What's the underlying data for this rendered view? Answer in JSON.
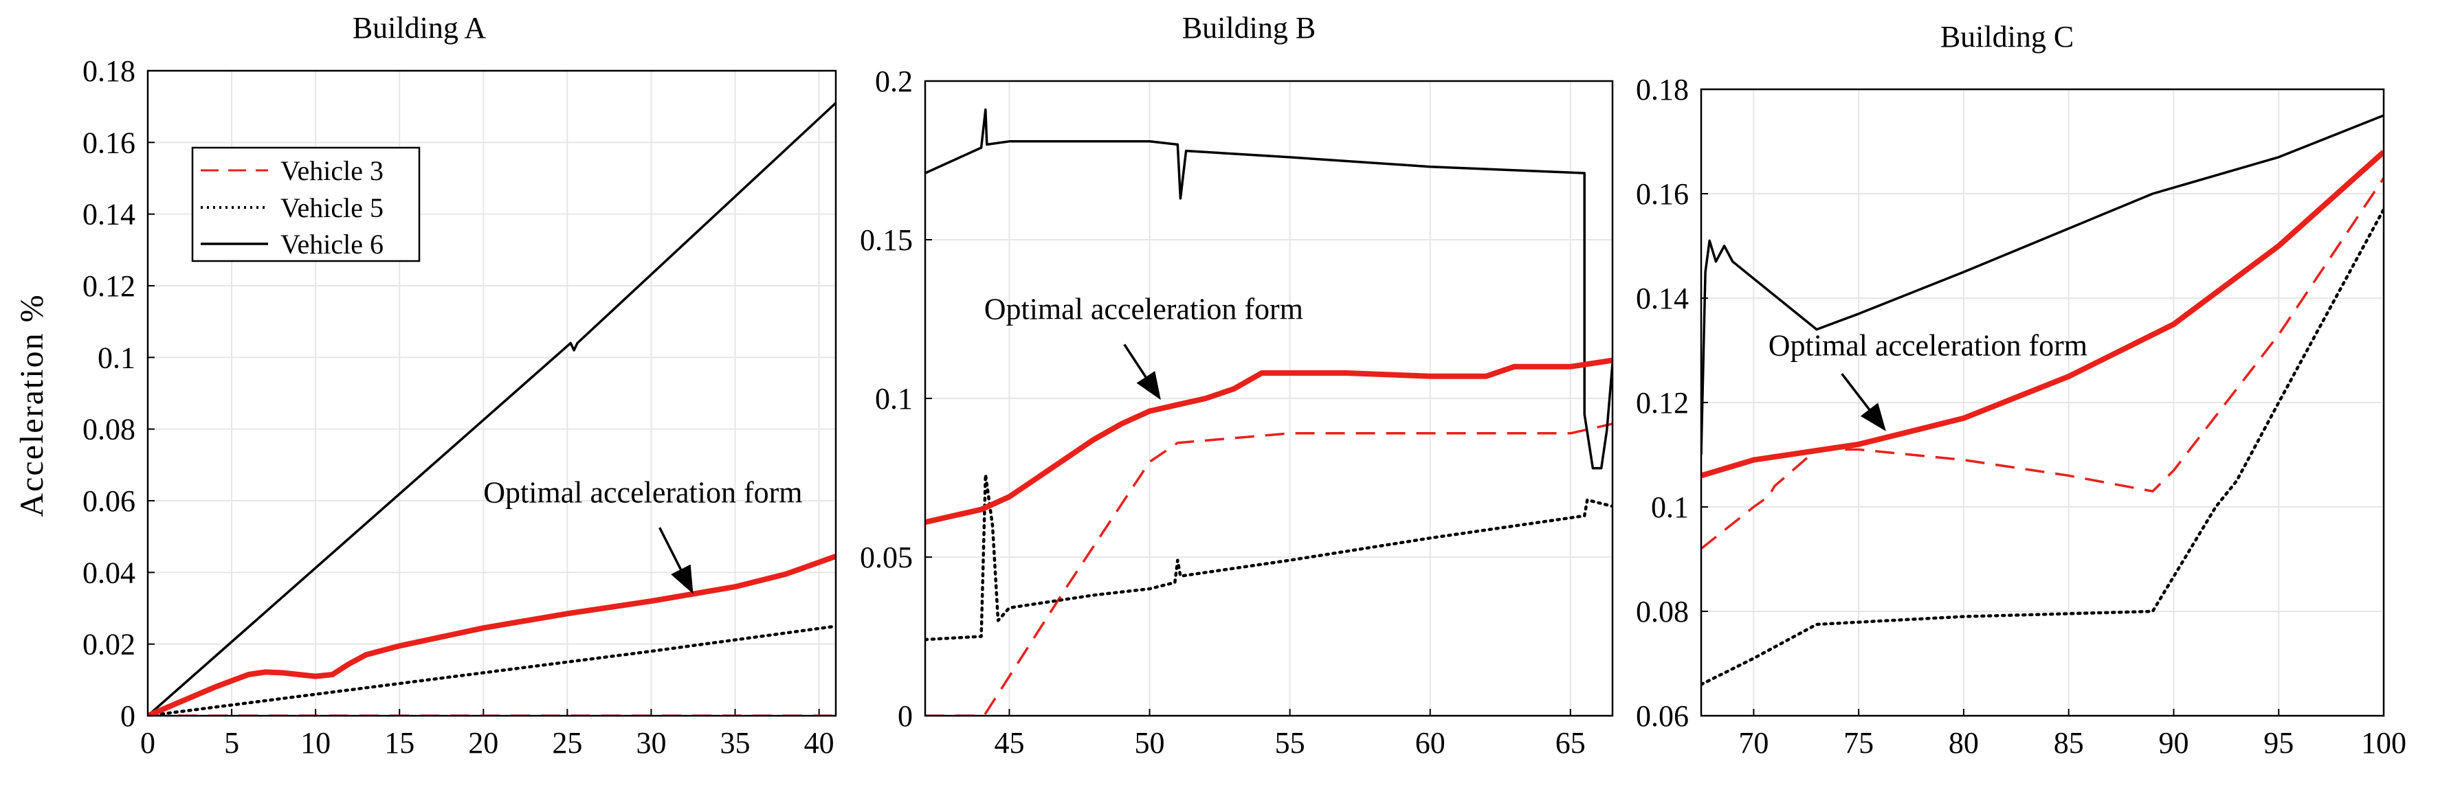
{
  "chart_data": [
    {
      "type": "line",
      "title": "Building A",
      "xlabel": "",
      "ylabel": "Acceleration %",
      "xlim": [
        0,
        41
      ],
      "ylim": [
        0,
        0.18
      ],
      "xticks": [
        0,
        5,
        10,
        15,
        20,
        25,
        30,
        35,
        40
      ],
      "yticks": [
        0,
        0.02,
        0.04,
        0.06,
        0.08,
        0.1,
        0.12,
        0.14,
        0.16,
        0.18
      ],
      "xtick_labels": [
        "0",
        "5",
        "10",
        "15",
        "20",
        "25",
        "30",
        "35",
        "40"
      ],
      "ytick_labels": [
        "0",
        "0.02",
        "0.04",
        "0.06",
        "0.08",
        "0.1",
        "0.12",
        "0.14",
        "0.16",
        "0.18"
      ],
      "legend": {
        "placement": "top-left",
        "entries": [
          "Vehicle 3",
          "Vehicle 5",
          "Vehicle 6"
        ]
      },
      "annotation": {
        "text": "Optimal acceleration form",
        "text_at": [
          20,
          0.0595
        ],
        "arrow_from": [
          30.5,
          0.0525
        ],
        "arrow_to": [
          32.5,
          0.034
        ]
      },
      "series": [
        {
          "name": "Vehicle 3",
          "style": "dashed",
          "color": "#e8211b",
          "points": [
            [
              0,
              0
            ],
            [
              3,
              0
            ],
            [
              41,
              0
            ]
          ]
        },
        {
          "name": "Vehicle 5",
          "style": "dotted",
          "color": "#000000",
          "points": [
            [
              0,
              0
            ],
            [
              10,
              0.006
            ],
            [
              20,
              0.012
            ],
            [
              30,
              0.018
            ],
            [
              41,
              0.025
            ]
          ]
        },
        {
          "name": "Vehicle 6",
          "style": "solid",
          "color": "#000000",
          "points": [
            [
              0,
              0
            ],
            [
              25.2,
              0.104
            ],
            [
              25.4,
              0.102
            ],
            [
              25.6,
              0.104
            ],
            [
              41,
              0.171
            ]
          ]
        },
        {
          "name": "Optimal acceleration form",
          "style": "solid-thick",
          "color": "#e8211b",
          "points": [
            [
              0,
              0
            ],
            [
              2,
              0.004
            ],
            [
              4,
              0.008
            ],
            [
              6,
              0.0115
            ],
            [
              7,
              0.0122
            ],
            [
              8,
              0.012
            ],
            [
              9,
              0.0115
            ],
            [
              10,
              0.011
            ],
            [
              11,
              0.0115
            ],
            [
              12,
              0.0145
            ],
            [
              13,
              0.017
            ],
            [
              15,
              0.0195
            ],
            [
              18,
              0.0225
            ],
            [
              20,
              0.0245
            ],
            [
              25,
              0.0285
            ],
            [
              30,
              0.032
            ],
            [
              35,
              0.036
            ],
            [
              38,
              0.0395
            ],
            [
              41,
              0.0445
            ]
          ]
        }
      ]
    },
    {
      "type": "line",
      "title": "Building B",
      "xlabel": "",
      "ylabel": "",
      "xlim": [
        42,
        66.5
      ],
      "ylim": [
        0,
        0.2
      ],
      "xticks": [
        45,
        50,
        55,
        60,
        65
      ],
      "yticks": [
        0,
        0.05,
        0.1,
        0.15,
        0.2
      ],
      "xtick_labels": [
        "45",
        "50",
        "55",
        "60",
        "65"
      ],
      "ytick_labels": [
        "0",
        "0.05",
        "0.1",
        "0.15",
        "0.2"
      ],
      "annotation": {
        "text": "Optimal acceleration form",
        "text_at": [
          44.1,
          0.125
        ],
        "arrow_from": [
          49.1,
          0.117
        ],
        "arrow_to": [
          50.4,
          0.0995
        ]
      },
      "series": [
        {
          "name": "Vehicle 3",
          "style": "dashed",
          "color": "#e8211b",
          "points": [
            [
              42,
              0
            ],
            [
              44.1,
              0
            ],
            [
              47,
              0.04
            ],
            [
              50,
              0.08
            ],
            [
              51,
              0.086
            ],
            [
              55,
              0.089
            ],
            [
              60,
              0.089
            ],
            [
              65,
              0.089
            ],
            [
              66.5,
              0.092
            ]
          ]
        },
        {
          "name": "Vehicle 5",
          "style": "dotted",
          "color": "#000000",
          "points": [
            [
              42,
              0.024
            ],
            [
              44,
              0.025
            ],
            [
              44.15,
              0.076
            ],
            [
              44.4,
              0.06
            ],
            [
              44.6,
              0.03
            ],
            [
              45,
              0.034
            ],
            [
              48,
              0.038
            ],
            [
              50,
              0.04
            ],
            [
              50.9,
              0.042
            ],
            [
              51,
              0.049
            ],
            [
              51.1,
              0.044
            ],
            [
              55,
              0.049
            ],
            [
              60,
              0.056
            ],
            [
              65.5,
              0.063
            ],
            [
              65.6,
              0.068
            ],
            [
              66.5,
              0.066
            ]
          ]
        },
        {
          "name": "Vehicle 6",
          "style": "solid",
          "color": "#000000",
          "points": [
            [
              42,
              0.171
            ],
            [
              44,
              0.179
            ],
            [
              44.15,
              0.191
            ],
            [
              44.2,
              0.18
            ],
            [
              45,
              0.181
            ],
            [
              50,
              0.181
            ],
            [
              51,
              0.18
            ],
            [
              51.1,
              0.163
            ],
            [
              51.3,
              0.178
            ],
            [
              55,
              0.176
            ],
            [
              60,
              0.173
            ],
            [
              65.5,
              0.171
            ],
            [
              65.5,
              0.095
            ],
            [
              65.8,
              0.078
            ],
            [
              66.1,
              0.078
            ],
            [
              66.3,
              0.09
            ],
            [
              66.5,
              0.111
            ]
          ]
        },
        {
          "name": "Optimal acceleration form",
          "style": "solid-thick",
          "color": "#e8211b",
          "points": [
            [
              42,
              0.061
            ],
            [
              43,
              0.063
            ],
            [
              44,
              0.065
            ],
            [
              45,
              0.069
            ],
            [
              46,
              0.075
            ],
            [
              47,
              0.081
            ],
            [
              48,
              0.087
            ],
            [
              49,
              0.092
            ],
            [
              50,
              0.096
            ],
            [
              51,
              0.098
            ],
            [
              52,
              0.1
            ],
            [
              53,
              0.103
            ],
            [
              54,
              0.108
            ],
            [
              55,
              0.108
            ],
            [
              57,
              0.108
            ],
            [
              60,
              0.107
            ],
            [
              62,
              0.107
            ],
            [
              63,
              0.11
            ],
            [
              65,
              0.11
            ],
            [
              66.5,
              0.112
            ]
          ]
        }
      ]
    },
    {
      "type": "line",
      "title": "Building C",
      "xlabel": "",
      "ylabel": "",
      "xlim": [
        67.5,
        100
      ],
      "ylim": [
        0.06,
        0.18
      ],
      "xticks": [
        70,
        75,
        80,
        85,
        90,
        95,
        100
      ],
      "yticks": [
        0.06,
        0.08,
        0.1,
        0.12,
        0.14,
        0.16,
        0.18
      ],
      "xtick_labels": [
        "70",
        "75",
        "80",
        "85",
        "90",
        "95",
        "100"
      ],
      "ytick_labels": [
        "0.06",
        "0.08",
        "0.1",
        "0.12",
        "0.14",
        "0.16",
        "0.18"
      ],
      "annotation": {
        "text": "Optimal acceleration form",
        "text_at": [
          70.7,
          0.129
        ],
        "arrow_from": [
          74.2,
          0.1255
        ],
        "arrow_to": [
          76.3,
          0.1145
        ]
      },
      "series": [
        {
          "name": "Vehicle 3",
          "style": "dashed",
          "color": "#e8211b",
          "points": [
            [
              67.5,
              0.092
            ],
            [
              70,
              0.1
            ],
            [
              70.7,
              0.102
            ],
            [
              71,
              0.104
            ],
            [
              73,
              0.111
            ],
            [
              75,
              0.111
            ],
            [
              80,
              0.109
            ],
            [
              85,
              0.106
            ],
            [
              89,
              0.103
            ],
            [
              90,
              0.107
            ],
            [
              95,
              0.133
            ],
            [
              100,
              0.163
            ]
          ]
        },
        {
          "name": "Vehicle 5",
          "style": "dotted",
          "color": "#000000",
          "points": [
            [
              67.5,
              0.066
            ],
            [
              70,
              0.071
            ],
            [
              73,
              0.0775
            ],
            [
              80,
              0.079
            ],
            [
              89,
              0.08
            ],
            [
              92,
              0.1
            ],
            [
              93,
              0.105
            ],
            [
              95,
              0.12
            ],
            [
              100,
              0.157
            ]
          ]
        },
        {
          "name": "Vehicle 6",
          "style": "solid",
          "color": "#000000",
          "points": [
            [
              67.5,
              0.11
            ],
            [
              67.7,
              0.145
            ],
            [
              67.9,
              0.151
            ],
            [
              68.2,
              0.147
            ],
            [
              68.6,
              0.15
            ],
            [
              69,
              0.147
            ],
            [
              73,
              0.134
            ],
            [
              75,
              0.137
            ],
            [
              80,
              0.145
            ],
            [
              89,
              0.16
            ],
            [
              95,
              0.167
            ],
            [
              100,
              0.175
            ]
          ]
        },
        {
          "name": "Optimal acceleration form",
          "style": "solid-thick",
          "color": "#e8211b",
          "points": [
            [
              67.5,
              0.106
            ],
            [
              70,
              0.109
            ],
            [
              75,
              0.112
            ],
            [
              80,
              0.117
            ],
            [
              85,
              0.125
            ],
            [
              90,
              0.135
            ],
            [
              95,
              0.15
            ],
            [
              100,
              0.168
            ]
          ]
        }
      ]
    }
  ]
}
